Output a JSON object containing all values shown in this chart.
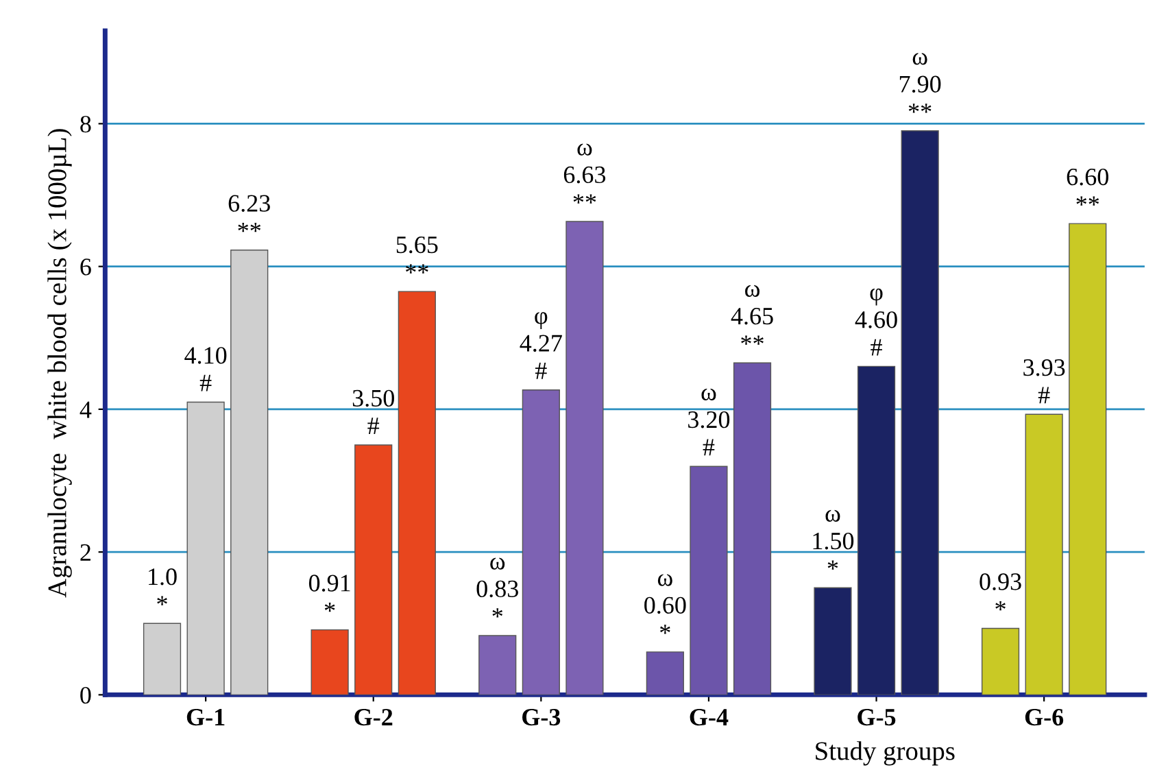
{
  "chart_data": {
    "type": "bar",
    "xlabel": "Study groups",
    "ylabel": "Agranulocyte  white blood cells (x 1000µL)",
    "categories": [
      "G-1",
      "G-2",
      "G-3",
      "G-4",
      "G-5",
      "G-6"
    ],
    "series": [
      {
        "colors": [
          "#cfcfcf",
          "#e8461e",
          "#7d62b3",
          "#6c55aa",
          "#1b2363",
          "#c9c925"
        ],
        "values": [
          1.0,
          0.91,
          0.83,
          0.6,
          1.5,
          0.93
        ],
        "value_labels": [
          "1.0\n*",
          "0.91\n*",
          "ω\n0.83\n*",
          "ω\n0.60\n*",
          "ω\n1.50\n*",
          "0.93\n*"
        ]
      },
      {
        "colors": [
          "#cfcfcf",
          "#e8461e",
          "#7d62b3",
          "#6c55aa",
          "#1b2363",
          "#c9c925"
        ],
        "values": [
          4.1,
          3.5,
          4.27,
          3.2,
          4.6,
          3.93
        ],
        "value_labels": [
          "4.10\n#",
          "3.50\n#",
          "φ\n4.27\n#",
          "ω\n3.20\n#",
          "φ\n4.60\n#",
          "3.93\n#"
        ]
      },
      {
        "colors": [
          "#cfcfcf",
          "#e8461e",
          "#7d62b3",
          "#6c55aa",
          "#1b2363",
          "#c9c925"
        ],
        "values": [
          6.23,
          5.65,
          6.63,
          4.65,
          7.9,
          6.6
        ],
        "value_labels": [
          "6.23\n**",
          "5.65\n**",
          "ω\n6.63\n**",
          "ω\n4.65\n**",
          "ω\n7.90\n**",
          "6.60\n**"
        ]
      }
    ],
    "ylim": [
      0,
      9.3
    ],
    "yticks": [
      0,
      2,
      4,
      6,
      8
    ],
    "grid": "y",
    "legend": false
  }
}
